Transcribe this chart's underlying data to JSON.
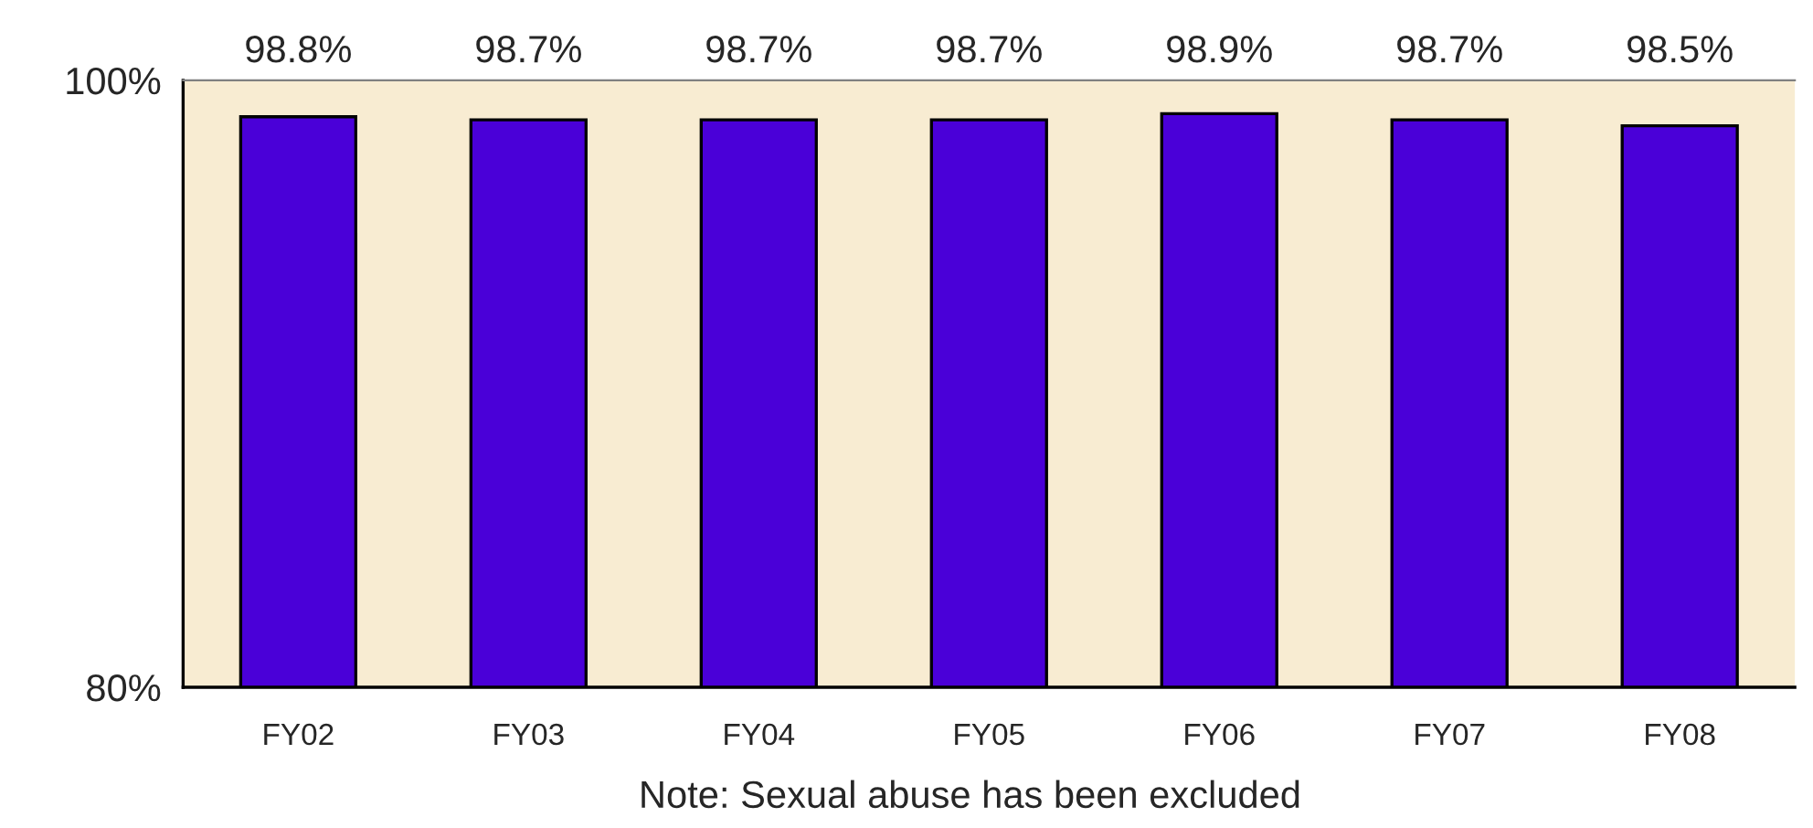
{
  "chart_data": {
    "type": "bar",
    "categories": [
      "FY02",
      "FY03",
      "FY04",
      "FY05",
      "FY06",
      "FY07",
      "FY08"
    ],
    "values": [
      98.8,
      98.7,
      98.7,
      98.7,
      98.9,
      98.7,
      98.5
    ],
    "value_labels": [
      "98.8%",
      "98.7%",
      "98.7%",
      "98.7%",
      "98.9%",
      "98.7%",
      "98.5%"
    ],
    "color": "#4a00d8",
    "ylim": [
      80,
      100
    ],
    "yticks": [
      {
        "value": 80,
        "label": "80%"
      },
      {
        "value": 100,
        "label": "100%"
      }
    ],
    "grid": false,
    "annotations": [
      "Note: Sexual abuse has been excluded"
    ]
  }
}
